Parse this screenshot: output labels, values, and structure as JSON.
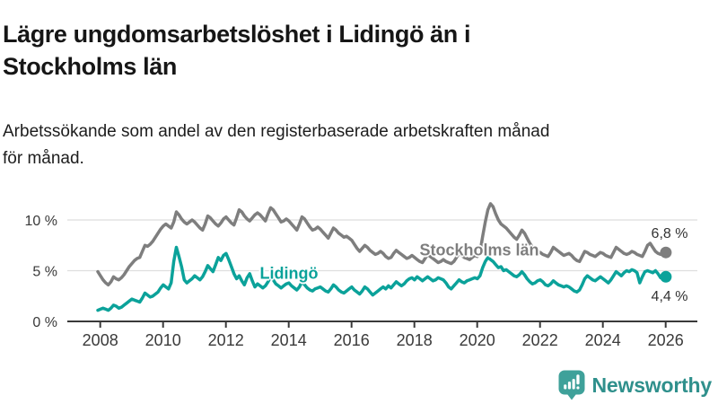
{
  "header": {
    "title_lines": [
      "Lägre ungdomsarbetslöshet i Lidingö än i",
      "Stockholms län"
    ],
    "subtitle_lines": [
      "Arbetssökande som andel av den registerbaserade arbetskraften månad",
      "för månad."
    ]
  },
  "colors": {
    "title_text": "#161616",
    "axis": "#3a3a3a",
    "grid": "#dedede",
    "value_label": "#333333",
    "brand_icon": "#3fa19a",
    "brand_text": "#2f908c"
  },
  "chart_data": {
    "type": "line",
    "x_start": "2008-01",
    "x_end": "2026-02",
    "points_per_year": 12,
    "x_ticks": [
      "2008",
      "2010",
      "2012",
      "2014",
      "2016",
      "2018",
      "2020",
      "2022",
      "2024",
      "2026"
    ],
    "y_ticks": [
      {
        "value": 0,
        "label": "0 %"
      },
      {
        "value": 5,
        "label": "5 %"
      },
      {
        "value": 10,
        "label": "10 %"
      }
    ],
    "ylim": [
      0,
      12.5
    ],
    "grid": true,
    "legend_position": "inline",
    "series": [
      {
        "name": "Stockholms län",
        "color": "#7e7e7e",
        "end_label": "6,8 %",
        "end_value": 6.8,
        "values": [
          4.9,
          4.5,
          4.1,
          3.8,
          3.6,
          3.9,
          4.4,
          4.2,
          4.1,
          4.3,
          4.6,
          5.0,
          5.4,
          5.7,
          6.0,
          6.2,
          6.3,
          6.9,
          7.5,
          7.4,
          7.6,
          7.9,
          8.3,
          8.7,
          9.1,
          9.4,
          9.6,
          9.4,
          9.2,
          9.8,
          10.8,
          10.5,
          10.1,
          9.8,
          9.6,
          9.8,
          10.0,
          9.8,
          9.5,
          9.2,
          9.0,
          9.6,
          10.4,
          10.2,
          9.9,
          9.6,
          9.4,
          9.7,
          10.1,
          10.3,
          10.0,
          9.7,
          9.5,
          10.2,
          11.0,
          10.8,
          10.4,
          10.1,
          9.9,
          10.2,
          10.5,
          10.7,
          10.5,
          10.2,
          9.9,
          10.6,
          11.2,
          11.0,
          10.6,
          10.2,
          9.8,
          9.9,
          10.1,
          9.9,
          9.6,
          9.3,
          9.0,
          9.6,
          10.3,
          10.1,
          9.7,
          9.3,
          9.0,
          9.1,
          9.3,
          9.1,
          8.8,
          8.5,
          8.2,
          8.7,
          9.2,
          9.0,
          8.7,
          8.5,
          8.3,
          8.4,
          8.2,
          8.0,
          7.6,
          7.2,
          6.9,
          7.2,
          7.5,
          7.3,
          7.0,
          6.8,
          6.6,
          6.7,
          6.9,
          6.7,
          6.4,
          6.2,
          6.3,
          6.7,
          7.0,
          6.8,
          6.6,
          6.4,
          6.2,
          6.3,
          6.5,
          6.3,
          6.1,
          5.9,
          5.8,
          6.2,
          6.6,
          6.4,
          6.2,
          6.0,
          5.8,
          5.9,
          6.1,
          5.9,
          5.8,
          5.7,
          5.9,
          6.3,
          6.7,
          6.5,
          6.3,
          6.2,
          6.1,
          6.3,
          6.5,
          6.4,
          6.8,
          8.4,
          9.8,
          11.0,
          11.6,
          11.3,
          10.6,
          10.0,
          9.6,
          9.4,
          9.2,
          8.9,
          8.6,
          8.3,
          8.1,
          8.5,
          9.0,
          8.7,
          8.2,
          7.7,
          7.3,
          7.1,
          6.9,
          6.8,
          6.6,
          6.5,
          6.4,
          6.8,
          7.3,
          7.1,
          6.9,
          6.7,
          6.5,
          6.6,
          6.7,
          6.5,
          6.2,
          6.0,
          5.9,
          6.4,
          6.9,
          6.8,
          6.6,
          6.5,
          6.4,
          6.6,
          6.8,
          6.7,
          6.5,
          6.4,
          6.3,
          6.8,
          7.3,
          7.1,
          6.9,
          6.7,
          6.6,
          6.7,
          6.9,
          6.8,
          6.6,
          6.5,
          6.4,
          6.9,
          7.5,
          7.7,
          7.3,
          6.9,
          6.7,
          6.6,
          6.9,
          6.8
        ]
      },
      {
        "name": "Lidingö",
        "color": "#0ba29a",
        "end_label": "4,4 %",
        "end_value": 4.4,
        "values": [
          1.1,
          1.2,
          1.3,
          1.2,
          1.1,
          1.3,
          1.6,
          1.5,
          1.3,
          1.4,
          1.6,
          1.8,
          2.0,
          2.2,
          2.1,
          2.0,
          1.9,
          2.3,
          2.8,
          2.6,
          2.4,
          2.5,
          2.7,
          2.9,
          3.3,
          3.6,
          3.4,
          3.2,
          3.8,
          5.9,
          7.3,
          6.4,
          5.4,
          4.1,
          3.8,
          4.0,
          4.2,
          4.5,
          4.3,
          4.1,
          4.4,
          4.9,
          5.5,
          5.2,
          4.9,
          5.6,
          6.3,
          6.0,
          6.5,
          6.7,
          6.1,
          5.4,
          4.7,
          4.2,
          4.5,
          4.0,
          3.6,
          4.3,
          4.7,
          4.0,
          3.4,
          3.7,
          3.5,
          3.3,
          3.5,
          3.9,
          4.4,
          4.1,
          3.7,
          3.5,
          3.3,
          3.5,
          3.7,
          3.8,
          3.5,
          3.3,
          3.1,
          3.4,
          3.9,
          3.6,
          3.3,
          3.1,
          3.0,
          3.2,
          3.3,
          3.4,
          3.2,
          3.0,
          2.9,
          3.2,
          3.6,
          3.4,
          3.1,
          2.9,
          2.8,
          3.0,
          3.2,
          3.4,
          3.1,
          2.9,
          2.7,
          3.0,
          3.4,
          3.2,
          2.9,
          2.6,
          2.8,
          3.0,
          3.2,
          3.4,
          3.2,
          3.5,
          3.3,
          3.6,
          3.9,
          3.7,
          3.5,
          3.7,
          4.0,
          4.2,
          4.3,
          4.1,
          4.4,
          4.2,
          4.0,
          4.2,
          4.4,
          4.2,
          4.0,
          4.1,
          4.3,
          4.2,
          4.1,
          3.8,
          3.4,
          3.2,
          3.5,
          3.8,
          4.1,
          3.9,
          3.8,
          4.0,
          4.1,
          4.2,
          4.3,
          4.2,
          4.5,
          5.3,
          5.9,
          6.3,
          6.1,
          5.9,
          5.6,
          5.3,
          5.4,
          5.0,
          5.1,
          4.9,
          4.7,
          4.5,
          4.4,
          4.6,
          4.9,
          4.6,
          4.2,
          3.9,
          3.7,
          3.8,
          4.0,
          4.1,
          3.9,
          3.6,
          3.5,
          3.7,
          4.0,
          3.8,
          3.6,
          3.5,
          3.4,
          3.5,
          3.4,
          3.2,
          3.0,
          2.9,
          3.1,
          3.6,
          4.2,
          4.5,
          4.3,
          4.1,
          4.0,
          4.2,
          4.4,
          4.2,
          4.0,
          3.8,
          4.1,
          4.5,
          4.9,
          4.7,
          4.5,
          4.8,
          5.0,
          4.9,
          5.1,
          5.0,
          4.8,
          3.8,
          4.4,
          4.9,
          5.0,
          4.9,
          4.8,
          5.0,
          4.7,
          4.3,
          4.2,
          4.4
        ]
      }
    ]
  },
  "footer": {
    "brand": "Newsworthy",
    "icon": "newsworthy-speech-bubble-chart-icon"
  }
}
